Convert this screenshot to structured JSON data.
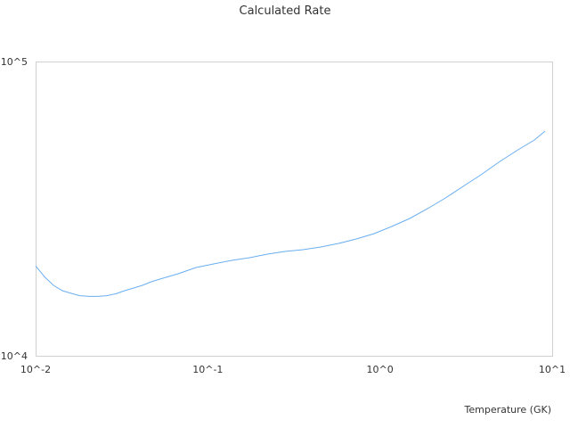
{
  "chart_data": {
    "type": "line",
    "title": "Calculated Rate",
    "xlabel": "Temperature (GK)",
    "ylabel": "",
    "xscale": "log",
    "yscale": "log",
    "xlim": [
      0.01,
      10
    ],
    "ylim": [
      10000,
      100000
    ],
    "x_tick_labels": [
      "10^-2",
      "10^-1",
      "10^0",
      "10^1"
    ],
    "y_tick_labels": [
      "10^4",
      "10^5"
    ],
    "grid": false,
    "legend": "none",
    "line_color": "#6aaef0",
    "axis_color": "#d0d0d0",
    "series": [
      {
        "x": [
          0.01,
          0.0113,
          0.0127,
          0.0143,
          0.0161,
          0.0181,
          0.0204,
          0.023,
          0.0259,
          0.0292,
          0.0329,
          0.0371,
          0.0417,
          0.047,
          0.053,
          0.0673,
          0.0854,
          0.108,
          0.138,
          0.175,
          0.222,
          0.281,
          0.357,
          0.453,
          0.575,
          0.729,
          0.925,
          1.17,
          1.49,
          1.89,
          2.4,
          3.04,
          3.86,
          4.89,
          6.21,
          7.88,
          9.1
        ],
        "y": [
          20200,
          18500,
          17350,
          16640,
          16300,
          16010,
          15910,
          15910,
          16010,
          16240,
          16640,
          16990,
          17350,
          17850,
          18230,
          19000,
          19950,
          20520,
          21100,
          21540,
          22150,
          22620,
          22940,
          23420,
          24090,
          24940,
          26010,
          27510,
          29290,
          31620,
          34390,
          37650,
          41230,
          45470,
          49770,
          54130,
          58030
        ]
      }
    ]
  }
}
